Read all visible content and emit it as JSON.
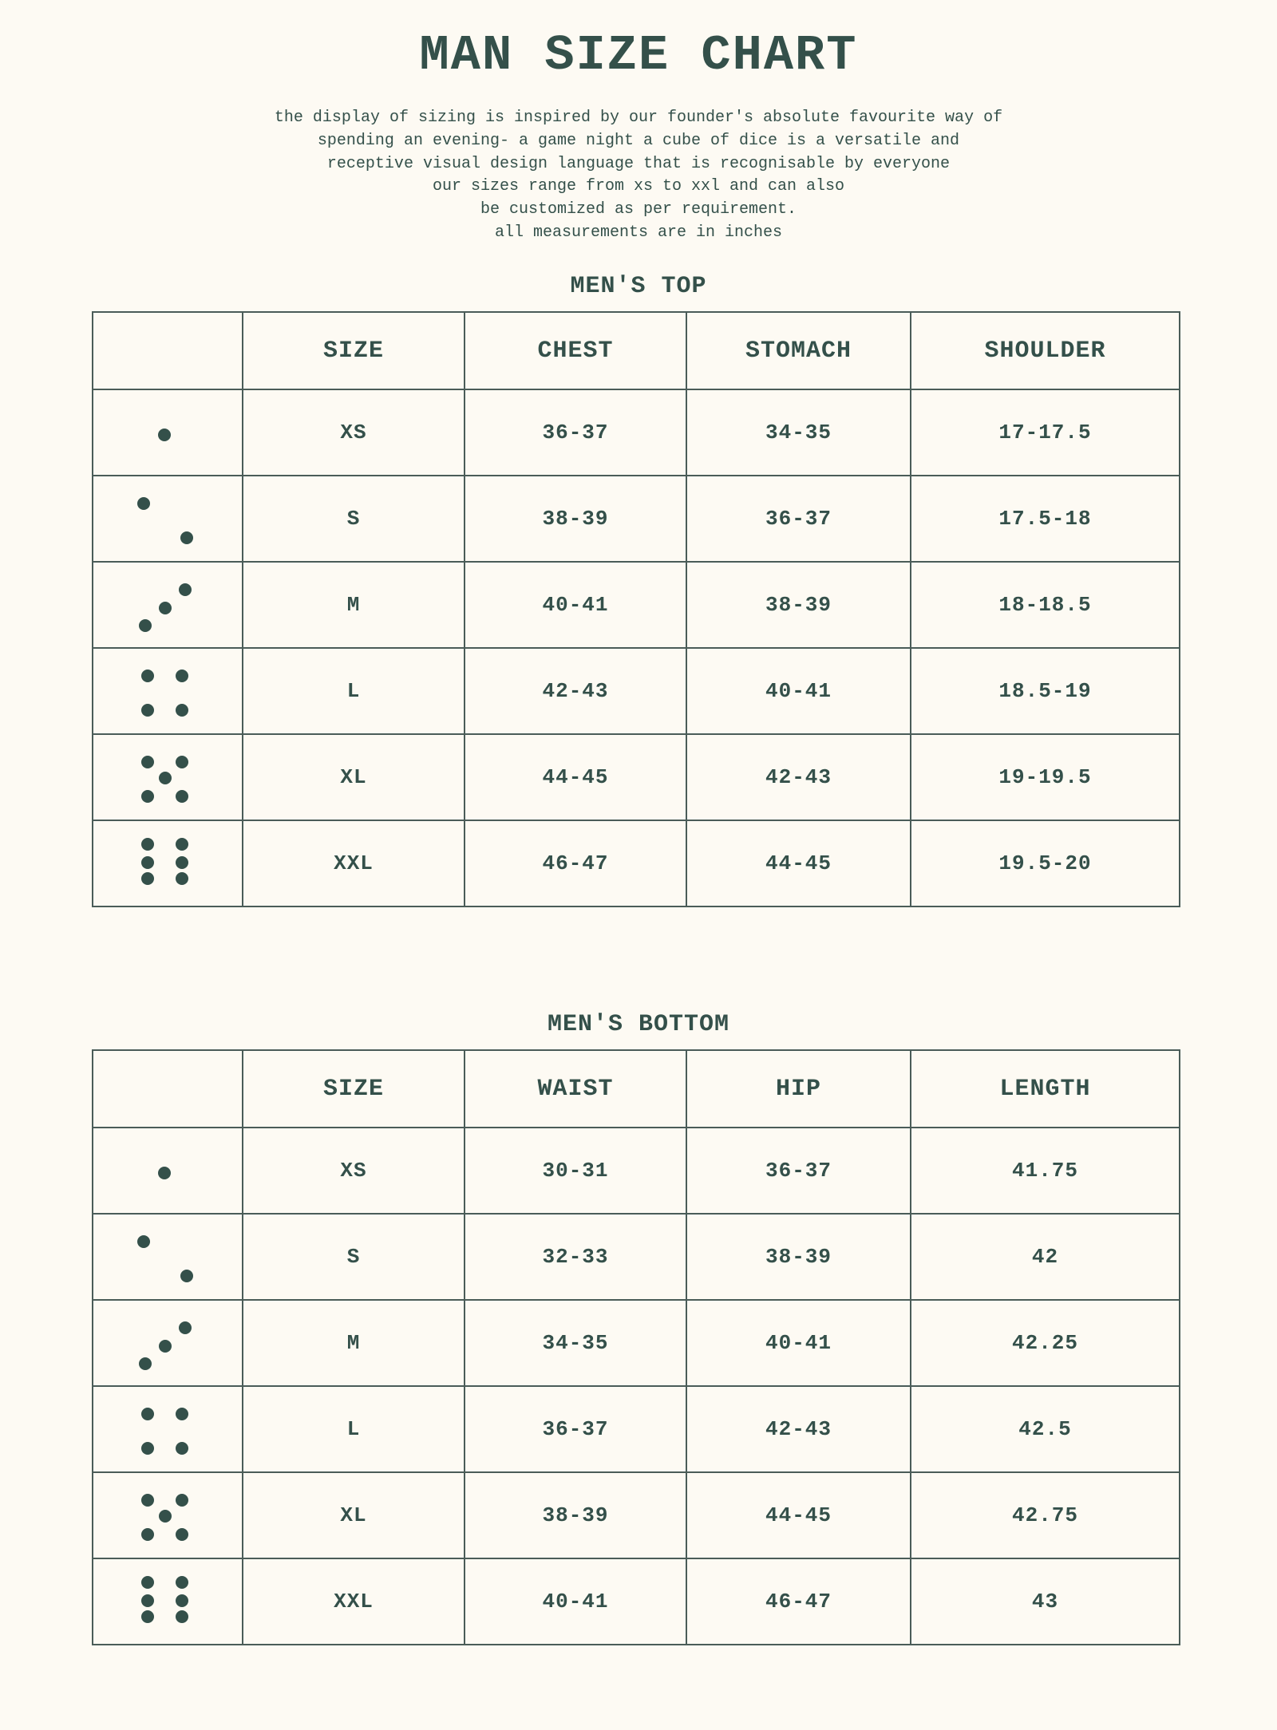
{
  "title": "MAN SIZE CHART",
  "description": [
    "the display of sizing is inspired by our founder's absolute favourite way of",
    "spending an evening- a game night a cube of dice is a versatile and",
    "receptive visual design language that is recognisable by everyone",
    "our sizes range from xs to xxl and can also",
    "be customized as per requirement.",
    "all measurements are in inches"
  ],
  "colors": {
    "background": "#fdfaf3",
    "text": "#34504a",
    "border": "#4a5c58"
  },
  "tables": [
    {
      "title": "MEN'S TOP",
      "headers": [
        "",
        "SIZE",
        "CHEST",
        "STOMACH",
        "SHOULDER"
      ],
      "rows": [
        {
          "pips": 1,
          "cells": [
            "XS",
            "36-37",
            "34-35",
            "17-17.5"
          ]
        },
        {
          "pips": 2,
          "cells": [
            "S",
            "38-39",
            "36-37",
            "17.5-18"
          ]
        },
        {
          "pips": 3,
          "cells": [
            "M",
            "40-41",
            "38-39",
            "18-18.5"
          ]
        },
        {
          "pips": 4,
          "cells": [
            "L",
            "42-43",
            "40-41",
            "18.5-19"
          ]
        },
        {
          "pips": 5,
          "cells": [
            "XL",
            "44-45",
            "42-43",
            "19-19.5"
          ]
        },
        {
          "pips": 6,
          "cells": [
            "XXL",
            "46-47",
            "44-45",
            "19.5-20"
          ]
        }
      ]
    },
    {
      "title": "MEN'S BOTTOM",
      "headers": [
        "",
        "SIZE",
        "WAIST",
        "HIP",
        "LENGTH"
      ],
      "rows": [
        {
          "pips": 1,
          "cells": [
            "XS",
            "30-31",
            "36-37",
            "41.75"
          ]
        },
        {
          "pips": 2,
          "cells": [
            "S",
            "32-33",
            "38-39",
            "42"
          ]
        },
        {
          "pips": 3,
          "cells": [
            "M",
            "34-35",
            "40-41",
            "42.25"
          ]
        },
        {
          "pips": 4,
          "cells": [
            "L",
            "36-37",
            "42-43",
            "42.5"
          ]
        },
        {
          "pips": 5,
          "cells": [
            "XL",
            "38-39",
            "44-45",
            "42.75"
          ]
        },
        {
          "pips": 6,
          "cells": [
            "XXL",
            "40-41",
            "46-47",
            "43"
          ]
        }
      ]
    }
  ]
}
